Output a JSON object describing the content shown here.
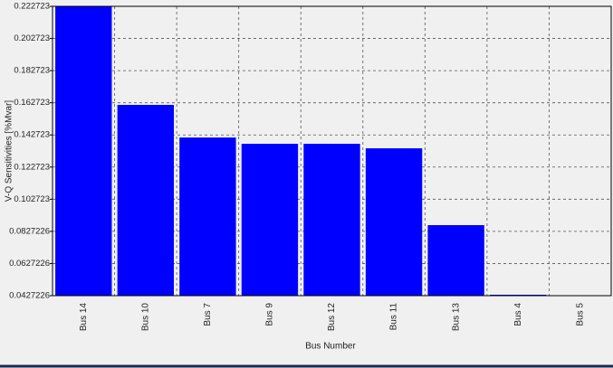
{
  "chart_data": {
    "type": "bar",
    "x_label": "Bus Number",
    "y_label": "V-Q Sensitivities [%Mvar]",
    "categories": [
      "Bus 14",
      "Bus 10",
      "Bus 7",
      "Bus 9",
      "Bus 12",
      "Bus 11",
      "Bus 13",
      "Bus 4",
      "Bus 5"
    ],
    "values": [
      0.2227,
      0.1614,
      0.1411,
      0.1372,
      0.1372,
      0.1344,
      0.0866,
      0.0433,
      0.0427
    ],
    "color": "#0000ff",
    "ylim": [
      0.0427226,
      0.222723
    ],
    "yticks": [
      0.0427226,
      0.0627226,
      0.0827226,
      0.102723,
      0.122723,
      0.142723,
      0.162723,
      0.182723,
      0.202723,
      0.222723
    ],
    "grid": true
  }
}
